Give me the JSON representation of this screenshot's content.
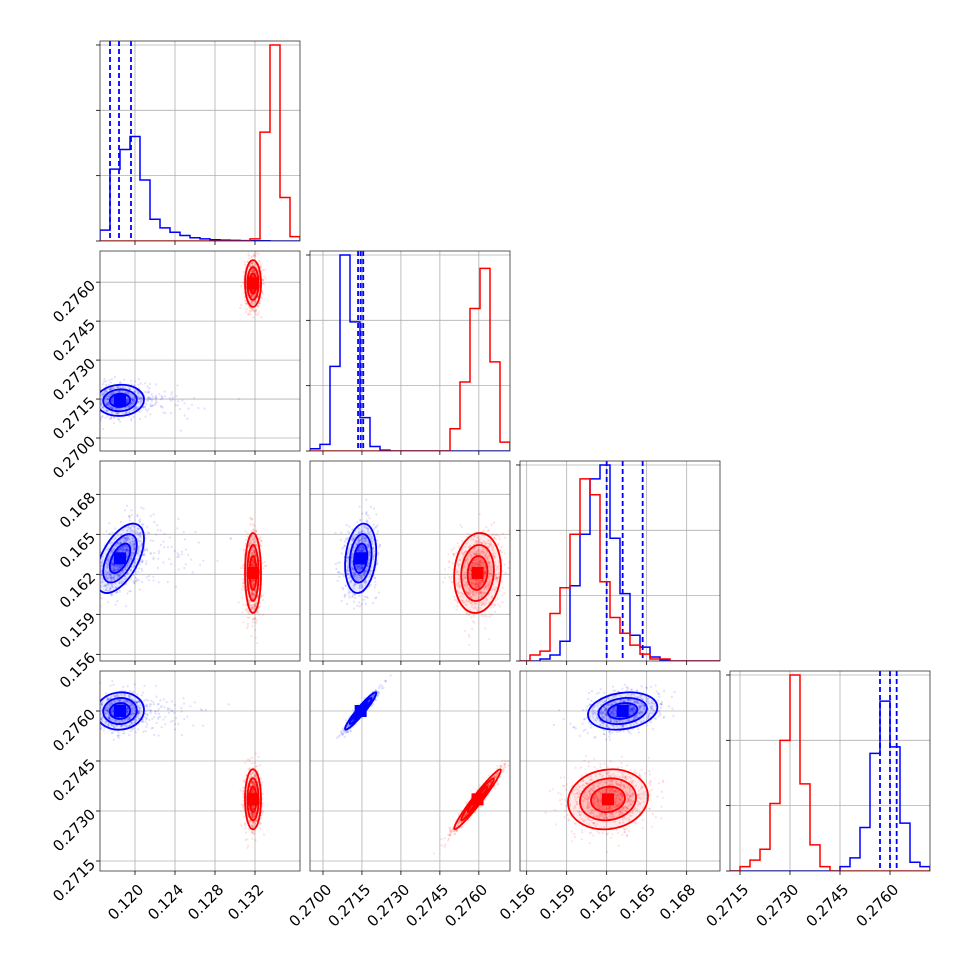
{
  "colors": {
    "blue": "#0000ff",
    "red": "#ff0000"
  },
  "chart_data": {
    "type": "corner",
    "title": "",
    "grid": true,
    "parameters": [
      {
        "key": "p1",
        "xlim": [
          0.1165,
          0.1365
        ],
        "ticks": [
          "0.120",
          "0.124",
          "0.128",
          "0.132"
        ],
        "tick_values": [
          0.12,
          0.124,
          0.128,
          0.132
        ]
      },
      {
        "key": "p2",
        "xlim": [
          0.2695,
          0.2772
        ],
        "ticks": [
          "0.2700",
          "0.2715",
          "0.2730",
          "0.2745",
          "0.2760"
        ],
        "tick_values": [
          0.27,
          0.2715,
          0.273,
          0.2745,
          0.276
        ]
      },
      {
        "key": "p3",
        "xlim": [
          0.1555,
          0.1705
        ],
        "ticks": [
          "0.156",
          "0.159",
          "0.162",
          "0.165",
          "0.168"
        ],
        "tick_values": [
          0.156,
          0.159,
          0.162,
          0.165,
          0.168
        ]
      },
      {
        "key": "p4",
        "xlim": [
          0.2712,
          0.2772
        ],
        "ticks": [
          "0.2715",
          "0.2730",
          "0.2745",
          "0.2760"
        ],
        "tick_values": [
          0.2715,
          0.273,
          0.2745,
          0.276
        ]
      }
    ],
    "series": [
      {
        "color": "blue",
        "mean": [
          0.1185,
          0.27145,
          0.1632,
          0.276
        ],
        "std": [
          0.0012,
          0.0003,
          0.0013,
          0.00028
        ],
        "quantiles": [
          [
            0.1175,
            0.1184,
            0.1196
          ],
          [
            0.27135,
            0.27145,
            0.27155
          ],
          [
            0.162,
            0.1632,
            0.1647
          ],
          [
            0.2757,
            0.276,
            0.2762
          ]
        ],
        "hist": [
          [
            0.05,
            0.33,
            0.42,
            0.48,
            0.28,
            0.1,
            0.06,
            0.04,
            0.025,
            0.015,
            0.01,
            0.006,
            0.004,
            0.003,
            0.002,
            0.001,
            0.001,
            0.0,
            0.0,
            0.0
          ],
          [
            0.01,
            0.03,
            0.38,
            0.88,
            0.58,
            0.15,
            0.02,
            0.004,
            0.0,
            0.0,
            0.0,
            0.0,
            0.0,
            0.0,
            0.0,
            0.0,
            0.0,
            0.0,
            0.0,
            0.0
          ],
          [
            0.0,
            0.0,
            0.01,
            0.03,
            0.1,
            0.38,
            0.64,
            0.92,
            0.99,
            0.62,
            0.34,
            0.13,
            0.07,
            0.02,
            0.005,
            0.0,
            0.0,
            0.0,
            0.0,
            0.0
          ],
          [
            0.0,
            0.0,
            0.0,
            0.0,
            0.0,
            0.0,
            0.0,
            0.0,
            0.0,
            0.0,
            0.0,
            0.02,
            0.06,
            0.2,
            0.54,
            0.78,
            0.57,
            0.22,
            0.04,
            0.02
          ]
        ]
      },
      {
        "color": "red",
        "mean": [
          0.1318,
          0.27595,
          0.1621,
          0.27335
        ],
        "std": [
          0.0004,
          0.00045,
          0.0015,
          0.00045
        ],
        "hist": [
          [
            0.0,
            0.0,
            0.0,
            0.0,
            0.0,
            0.0,
            0.0,
            0.0,
            0.0,
            0.0,
            0.0,
            0.0,
            0.0,
            0.0,
            0.0,
            0.01,
            0.5,
            0.9,
            0.2,
            0.02
          ],
          [
            0.0,
            0.0,
            0.0,
            0.0,
            0.0,
            0.0,
            0.0,
            0.0,
            0.0,
            0.0,
            0.0,
            0.0,
            0.0,
            0.0,
            0.1,
            0.31,
            0.64,
            0.82,
            0.4,
            0.04
          ],
          [
            0.0,
            0.03,
            0.05,
            0.24,
            0.37,
            0.64,
            0.92,
            0.84,
            0.4,
            0.22,
            0.14,
            0.08,
            0.035,
            0.01,
            0.01,
            0.0,
            0.0,
            0.0,
            0.0,
            0.0
          ],
          [
            0.0,
            0.02,
            0.05,
            0.1,
            0.31,
            0.6,
            0.9,
            0.4,
            0.12,
            0.02,
            0.0,
            0.0,
            0.0,
            0.0,
            0.0,
            0.0,
            0.0,
            0.0,
            0.0,
            0.0
          ]
        ]
      }
    ],
    "correlations": {
      "blue": {
        "1-0": 0.05,
        "2-0": 0.55,
        "2-1": 0.2,
        "3-0": 0.05,
        "3-1": 0.95,
        "3-2": 0.2
      },
      "red": {
        "1-0": 0.0,
        "2-0": 0.0,
        "2-1": 0.1,
        "3-0": 0.0,
        "3-1": 0.97,
        "3-2": 0.1
      }
    }
  }
}
